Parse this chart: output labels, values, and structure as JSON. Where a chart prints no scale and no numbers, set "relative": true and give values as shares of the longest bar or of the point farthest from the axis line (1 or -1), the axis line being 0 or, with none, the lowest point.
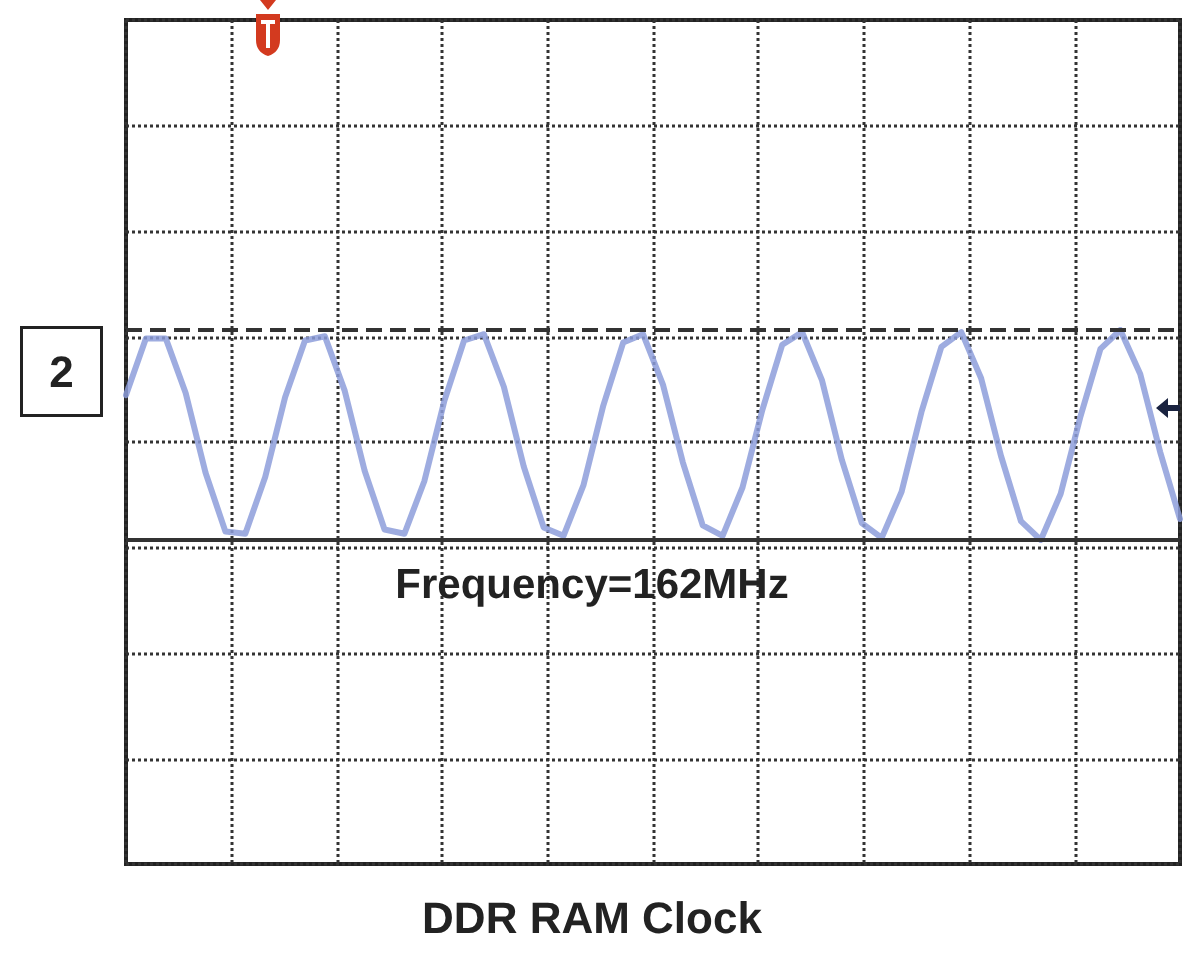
{
  "chart_data": {
    "type": "line",
    "title": "DDR RAM Clock",
    "relative": true,
    "grid": true,
    "marker": "none",
    "line_style": "solid",
    "annotations": [
      "Frequency=162MHz",
      "2"
    ],
    "categories": [
      null,
      null,
      null,
      null,
      null,
      null,
      null,
      null,
      null,
      null,
      null,
      null,
      null,
      null,
      null,
      null,
      null,
      null,
      null,
      null,
      null,
      null,
      null,
      null,
      null,
      null,
      null,
      null,
      null,
      null,
      null,
      null,
      null,
      null,
      null,
      null,
      null,
      null,
      null,
      null,
      null,
      null,
      null,
      null,
      null,
      null,
      null,
      null,
      null,
      null,
      null,
      null,
      null,
      null
    ],
    "series": [
      {
        "color": "#8d9edb",
        "values": [
          0.69,
          0.96,
          0.96,
          0.7,
          0.32,
          0.04,
          0.03,
          0.3,
          0.68,
          0.95,
          0.97,
          0.71,
          0.33,
          0.05,
          0.03,
          0.28,
          0.66,
          0.95,
          0.98,
          0.73,
          0.35,
          0.06,
          0.02,
          0.26,
          0.64,
          0.94,
          0.98,
          0.74,
          0.37,
          0.07,
          0.02,
          0.25,
          0.62,
          0.93,
          0.99,
          0.76,
          0.38,
          0.08,
          0.01,
          0.23,
          0.61,
          0.92,
          0.99,
          0.77,
          0.4,
          0.09,
          0,
          0.22,
          0.59,
          0.91,
          1,
          0.79,
          0.42,
          0.1
        ]
      }
    ],
    "ref_lines": [
      {
        "axis": "y",
        "value": 1,
        "line_style": "dashed",
        "color": "#333333"
      },
      {
        "axis": "y",
        "value": 0,
        "line_style": "solid",
        "color": "#333333"
      }
    ]
  }
}
